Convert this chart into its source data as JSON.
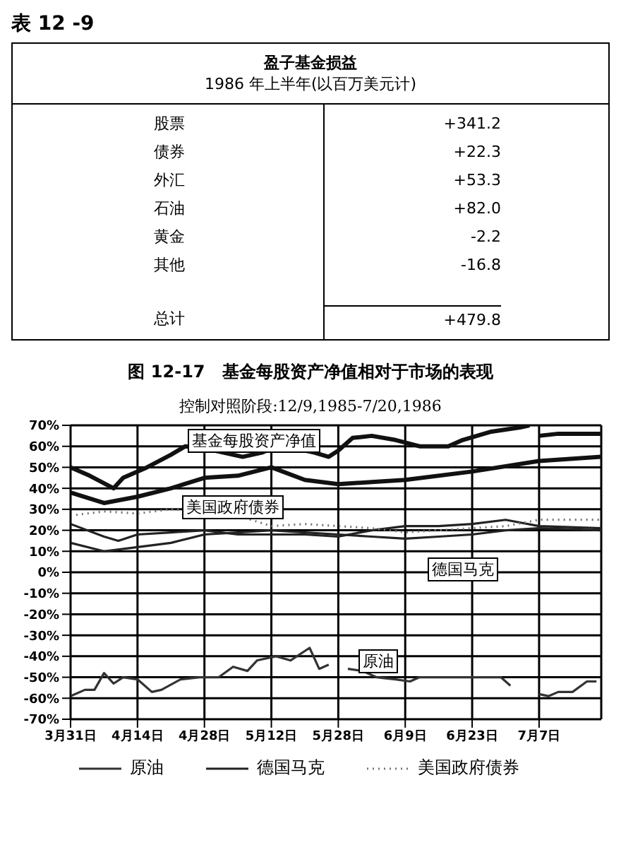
{
  "chart_data": [
    {
      "type": "other",
      "title": "盈子基金损益",
      "subtitle": "1986 年上半年(以百万美元计)",
      "annotations": [
        "表 12 -9"
      ],
      "categories": [
        "股票",
        "债券",
        "外汇",
        "石油",
        "黄金",
        "其他",
        "总计"
      ],
      "values": [
        341.2,
        22.3,
        53.3,
        82.0,
        -2.2,
        -16.8,
        479.8
      ],
      "value_labels": [
        "+341.2",
        "+22.3",
        "+53.3",
        "+82.0",
        "-2.2",
        "-16.8",
        "+479.8"
      ]
    },
    {
      "type": "line",
      "title": "图 12-17　基金每股资产净值相对于市场的表现",
      "subtitle": "控制对照阶段:12/9,1985-7/20,1986",
      "xlim": [
        "--03-31",
        "--07-20"
      ],
      "xticks": [
        {
          "value": "--03-31",
          "label": "3月31日"
        },
        {
          "value": "--04-14",
          "label": "4月14日"
        },
        {
          "value": "--04-28",
          "label": "4月28日"
        },
        {
          "value": "--05-12",
          "label": "5月12日"
        },
        {
          "value": "--05-26",
          "label": "5月28日"
        },
        {
          "value": "--06-09",
          "label": "6月9日"
        },
        {
          "value": "--06-23",
          "label": "6月23日"
        },
        {
          "value": "--07-07",
          "label": "7月7日"
        }
      ],
      "ylim": [
        -70,
        70
      ],
      "yticks": [
        {
          "value": -70,
          "label": "-70%"
        },
        {
          "value": -60,
          "label": "-60%"
        },
        {
          "value": -50,
          "label": "-50%"
        },
        {
          "value": -40,
          "label": "-40%"
        },
        {
          "value": -30,
          "label": "-30%"
        },
        {
          "value": -20,
          "label": "-20%"
        },
        {
          "value": -10,
          "label": "-10%"
        },
        {
          "value": 0,
          "label": "0%"
        },
        {
          "value": 10,
          "label": "10%"
        },
        {
          "value": 20,
          "label": "20%"
        },
        {
          "value": 30,
          "label": "30%"
        },
        {
          "value": 40,
          "label": "40%"
        },
        {
          "value": 50,
          "label": "50%"
        },
        {
          "value": 60,
          "label": "60%"
        },
        {
          "value": 70,
          "label": "70%"
        }
      ],
      "grid": true,
      "legend": "bottom",
      "marker": "none",
      "series": [
        {
          "color": "#111111",
          "x": [
            "--03-31",
            "--04-04",
            "--04-09",
            "--04-11",
            "--04-16",
            "--04-21",
            "--04-24",
            "--04-28",
            "--05-02",
            "--05-06",
            "--05-10",
            "--05-13",
            "--05-17",
            "--05-21",
            "--05-24",
            "--05-26",
            "--05-29",
            "--06-02",
            "--06-07",
            "--06-12",
            "--06-18",
            "--06-21",
            "--06-27",
            "--07-03",
            "--07-05",
            "--07-06",
            "--07-07",
            "--07-11",
            "--07-20"
          ],
          "values": [
            50,
            46,
            40,
            45,
            50,
            56,
            60,
            59,
            57,
            55,
            57,
            60,
            59,
            57,
            55,
            58,
            64,
            65,
            63,
            60,
            60,
            63,
            67,
            69,
            70,
            null,
            65,
            66,
            66
          ]
        },
        {
          "color": "#222222",
          "x": [
            "--03-31",
            "--04-07",
            "--04-10",
            "--04-14",
            "--04-21",
            "--04-28",
            "--05-05",
            "--05-12",
            "--05-19",
            "--05-26",
            "--06-02",
            "--06-09",
            "--06-16",
            "--06-23",
            "--06-30",
            "--07-07",
            "--07-20"
          ],
          "values": [
            23,
            17,
            15,
            18,
            19,
            20,
            18,
            18,
            18,
            17,
            20,
            22,
            22,
            23,
            25,
            22,
            21
          ]
        },
        {
          "color": "#111111",
          "x": [
            "--03-31",
            "--04-07",
            "--04-14",
            "--04-21",
            "--04-28",
            "--05-05",
            "--05-12",
            "--05-19",
            "--05-26",
            "--06-02",
            "--06-09",
            "--06-23",
            "--07-07",
            "--07-20"
          ],
          "values": [
            38,
            33,
            36,
            40,
            45,
            46,
            50,
            44,
            42,
            43,
            44,
            48,
            53,
            55
          ]
        },
        {
          "name": "原油",
          "color": "#333333",
          "x": [
            "--03-31",
            "--04-03",
            "--04-05",
            "--04-07",
            "--04-09",
            "--04-11",
            "--04-14",
            "--04-17",
            "--04-19",
            "--04-23",
            "--04-27",
            "--05-01",
            "--05-04",
            "--05-07",
            "--05-09",
            "--05-13",
            "--05-16",
            "--05-20",
            "--05-22",
            "--05-24",
            "--05-26",
            "--05-28",
            "--05-31",
            "--06-03",
            "--06-07",
            "--06-10",
            "--06-12",
            "--06-18",
            "--06-24",
            "--06-29",
            "--07-01",
            "--07-04",
            "--07-07",
            "--07-09",
            "--07-11",
            "--07-14",
            "--07-17",
            "--07-19"
          ],
          "values": [
            -59,
            -56,
            -56,
            -48,
            -53,
            -50,
            -51,
            -57,
            -56,
            -51,
            -50,
            -50,
            -45,
            -47,
            -42,
            -40,
            -42,
            -36,
            -46,
            -44,
            null,
            -46,
            -47,
            -50,
            -51,
            -52,
            -50,
            -50,
            -50,
            -50,
            -54,
            null,
            -58,
            -59,
            -57,
            -57,
            -52,
            -52
          ]
        },
        {
          "name": "德国马克",
          "color": "#222222",
          "x": [
            "--03-31",
            "--04-07",
            "--04-14",
            "--04-21",
            "--04-28",
            "--05-05",
            "--05-12",
            "--05-19",
            "--05-26",
            "--06-02",
            "--06-09",
            "--06-16",
            "--06-23",
            "--06-30",
            "--07-07",
            "--07-20"
          ],
          "values": [
            14,
            10,
            12,
            14,
            18,
            19,
            20,
            19,
            18,
            17,
            16,
            17,
            18,
            20,
            21,
            20
          ]
        },
        {
          "name": "美国政府债券",
          "color": "#777777",
          "line_style": "dotted",
          "x": [
            "--03-31",
            "--04-07",
            "--04-14",
            "--04-21",
            "--04-28",
            "--05-05",
            "--05-12",
            "--05-19",
            "--05-26",
            "--06-02",
            "--06-09",
            "--06-16",
            "--06-23",
            "--06-30",
            "--07-07",
            "--07-20"
          ],
          "values": [
            27,
            29,
            28,
            30,
            29,
            27,
            22,
            23,
            22,
            21,
            19,
            20,
            21,
            22,
            25,
            25
          ]
        }
      ],
      "annotations": [
        "基金每股资产净值",
        "美国政府债券",
        "原油",
        "德国马克"
      ]
    }
  ]
}
